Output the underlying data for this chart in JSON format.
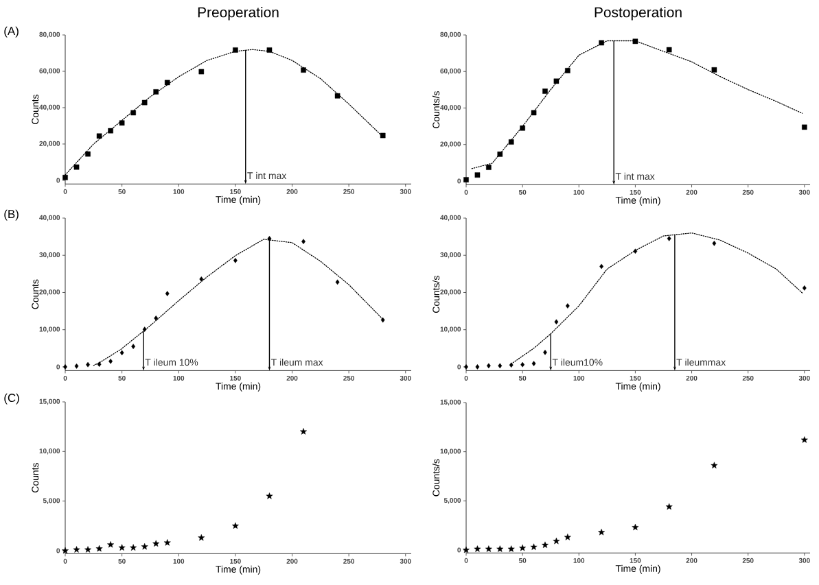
{
  "chart_data": [
    {
      "type": "scatter",
      "title": "Preoperation",
      "xlabel": "Time (min)",
      "ylabel": "Counts",
      "xlim": [
        0,
        305
      ],
      "ylim": [
        -2000,
        80000
      ],
      "xticks": [
        0,
        50,
        100,
        150,
        200,
        250,
        300
      ],
      "yticks": [
        {
          "value": 0,
          "label": "0"
        },
        {
          "value": 20000,
          "label": "20,000"
        },
        {
          "value": 40000,
          "label": "40,000"
        },
        {
          "value": 60000,
          "label": "60,000"
        },
        {
          "value": 80000,
          "label": "80,000"
        }
      ],
      "annotations": [
        "(A)",
        {
          "text": "T int max",
          "x": 159,
          "y": 71700
        }
      ],
      "series": [
        {
          "marker": "square",
          "color": "#000000",
          "x": [
            0,
            10,
            20,
            30,
            40,
            50,
            60,
            70,
            80,
            90,
            120,
            150,
            180,
            210,
            240,
            280
          ],
          "values": [
            1600,
            7300,
            14500,
            24400,
            27300,
            31600,
            37200,
            42800,
            48700,
            53800,
            59800,
            71700,
            71700,
            60700,
            46500,
            24700
          ]
        },
        {
          "type": "line",
          "line_style": "dotted",
          "color": "#000000",
          "x": [
            0,
            25,
            50,
            75,
            100,
            125,
            150,
            165,
            180,
            200,
            225,
            250,
            280
          ],
          "values": [
            3000,
            20000,
            33000,
            46000,
            57000,
            66000,
            71000,
            72000,
            71000,
            66000,
            56000,
            42000,
            24000
          ]
        }
      ]
    },
    {
      "type": "scatter",
      "title": "Postoperation",
      "xlabel": "Time (min)",
      "ylabel": "Counts/s",
      "xlim": [
        0,
        305
      ],
      "ylim": [
        -2000,
        80000
      ],
      "xticks": [
        0,
        50,
        100,
        150,
        200,
        250,
        300
      ],
      "yticks": [
        {
          "value": 0,
          "label": "0"
        },
        {
          "value": 20000,
          "label": "20,000"
        },
        {
          "value": 40000,
          "label": "40,000"
        },
        {
          "value": 60000,
          "label": "60,000"
        },
        {
          "value": 80000,
          "label": "80,000"
        }
      ],
      "annotations": [
        {
          "text": "T int max",
          "x": 131,
          "y": 76800
        }
      ],
      "series": [
        {
          "marker": "square",
          "color": "#000000",
          "x": [
            0,
            10,
            20,
            30,
            40,
            50,
            60,
            70,
            80,
            90,
            120,
            150,
            180,
            220,
            300
          ],
          "values": [
            700,
            3300,
            7500,
            14700,
            21400,
            29000,
            37400,
            49200,
            54700,
            60500,
            75700,
            76500,
            71900,
            60900,
            29500
          ]
        },
        {
          "type": "line",
          "line_style": "dotted",
          "color": "#000000",
          "x": [
            5,
            23,
            50,
            75,
            100,
            125,
            150,
            175,
            200,
            225,
            250,
            275,
            298
          ],
          "values": [
            6800,
            9700,
            29900,
            50100,
            68900,
            76800,
            76800,
            71000,
            65300,
            57300,
            50100,
            43600,
            37100
          ]
        }
      ]
    },
    {
      "type": "scatter",
      "xlabel": "Time (min)",
      "ylabel": "Counts",
      "xlim": [
        0,
        305
      ],
      "ylim": [
        -1000,
        40000
      ],
      "xticks": [
        0,
        50,
        100,
        150,
        200,
        250,
        300
      ],
      "yticks": [
        {
          "value": 0,
          "label": "0"
        },
        {
          "value": 10000,
          "label": "10,000"
        },
        {
          "value": 20000,
          "label": "20,000"
        },
        {
          "value": 30000,
          "label": "30,000"
        },
        {
          "value": 40000,
          "label": "40,000"
        }
      ],
      "annotations": [
        "(B)",
        {
          "text": "T ileum 10%",
          "x": 69,
          "y": 9600
        },
        {
          "text": "T ileum max",
          "x": 180,
          "y": 34300
        }
      ],
      "series": [
        {
          "marker": "diamond",
          "color": "#000000",
          "x": [
            0,
            10,
            20,
            30,
            40,
            50,
            60,
            70,
            80,
            90,
            120,
            150,
            180,
            210,
            240,
            280
          ],
          "values": [
            0,
            200,
            600,
            700,
            1500,
            3800,
            5500,
            10100,
            13100,
            19700,
            23600,
            28600,
            34500,
            33700,
            22800,
            12600
          ]
        },
        {
          "type": "line",
          "line_style": "dotted",
          "color": "#000000",
          "x": [
            25,
            30,
            49,
            75,
            100,
            125,
            150,
            175,
            200,
            225,
            250,
            280
          ],
          "values": [
            400,
            1100,
            4700,
            11100,
            17800,
            24200,
            29900,
            34300,
            33400,
            28400,
            22100,
            12800
          ]
        }
      ]
    },
    {
      "type": "scatter",
      "xlabel": "Time (min)",
      "ylabel": "Counts/s",
      "xlim": [
        0,
        305
      ],
      "ylim": [
        -1000,
        40000
      ],
      "xticks": [
        0,
        50,
        100,
        150,
        200,
        250,
        300
      ],
      "yticks": [
        {
          "value": 0,
          "label": "0"
        },
        {
          "value": 10000,
          "label": "10,000"
        },
        {
          "value": 20000,
          "label": "20,000"
        },
        {
          "value": 30000,
          "label": "30,000"
        },
        {
          "value": 40000,
          "label": "40,000"
        }
      ],
      "annotations": [
        {
          "text": "T ileum10%",
          "x": 75,
          "y": 8900
        },
        {
          "text": "T ileummax",
          "x": 185,
          "y": 35500
        }
      ],
      "series": [
        {
          "marker": "diamond",
          "color": "#000000",
          "x": [
            0,
            10,
            20,
            30,
            40,
            50,
            60,
            70,
            80,
            90,
            120,
            150,
            180,
            220,
            300
          ],
          "values": [
            0,
            0,
            300,
            300,
            500,
            600,
            900,
            3900,
            12100,
            16400,
            27000,
            31100,
            34500,
            33200,
            21200
          ]
        },
        {
          "type": "line",
          "line_style": "dotted",
          "color": "#000000",
          "x": [
            40,
            60,
            75,
            100,
            125,
            150,
            175,
            200,
            225,
            250,
            275,
            298
          ],
          "values": [
            800,
            5000,
            8900,
            16400,
            26300,
            31300,
            35200,
            36000,
            34100,
            30600,
            26300,
            19900
          ]
        }
      ]
    },
    {
      "type": "scatter",
      "xlabel": "Time (min)",
      "ylabel": "Counts",
      "xlim": [
        0,
        305
      ],
      "ylim": [
        -300,
        15000
      ],
      "xticks": [
        0,
        50,
        100,
        150,
        200,
        250,
        300
      ],
      "yticks": [
        {
          "value": 0,
          "label": "0"
        },
        {
          "value": 5000,
          "label": "5,000"
        },
        {
          "value": 10000,
          "label": "10,000"
        },
        {
          "value": 15000,
          "label": "15,000"
        }
      ],
      "annotations": [
        "(C)"
      ],
      "series": [
        {
          "marker": "star",
          "color": "#000000",
          "x": [
            0,
            10,
            20,
            30,
            40,
            50,
            60,
            70,
            80,
            90,
            120,
            150,
            180,
            210
          ],
          "values": [
            0,
            100,
            100,
            200,
            600,
            300,
            300,
            400,
            700,
            800,
            1300,
            2500,
            5500,
            12000
          ]
        }
      ]
    },
    {
      "type": "scatter",
      "xlabel": "Time (min)",
      "ylabel": "Counts/s",
      "xlim": [
        0,
        305
      ],
      "ylim": [
        -300,
        15000
      ],
      "xticks": [
        0,
        50,
        100,
        150,
        200,
        250,
        300
      ],
      "yticks": [
        {
          "value": 0,
          "label": "0"
        },
        {
          "value": 5000,
          "label": "5,000"
        },
        {
          "value": 10000,
          "label": "10,000"
        },
        {
          "value": 15000,
          "label": "15,000"
        }
      ],
      "series": [
        {
          "marker": "star",
          "color": "#000000",
          "x": [
            0,
            10,
            20,
            30,
            40,
            50,
            60,
            70,
            80,
            90,
            120,
            150,
            180,
            220,
            300
          ],
          "values": [
            0,
            100,
            100,
            100,
            100,
            200,
            300,
            500,
            900,
            1300,
            1800,
            2300,
            4400,
            8600,
            11200
          ]
        }
      ]
    }
  ]
}
